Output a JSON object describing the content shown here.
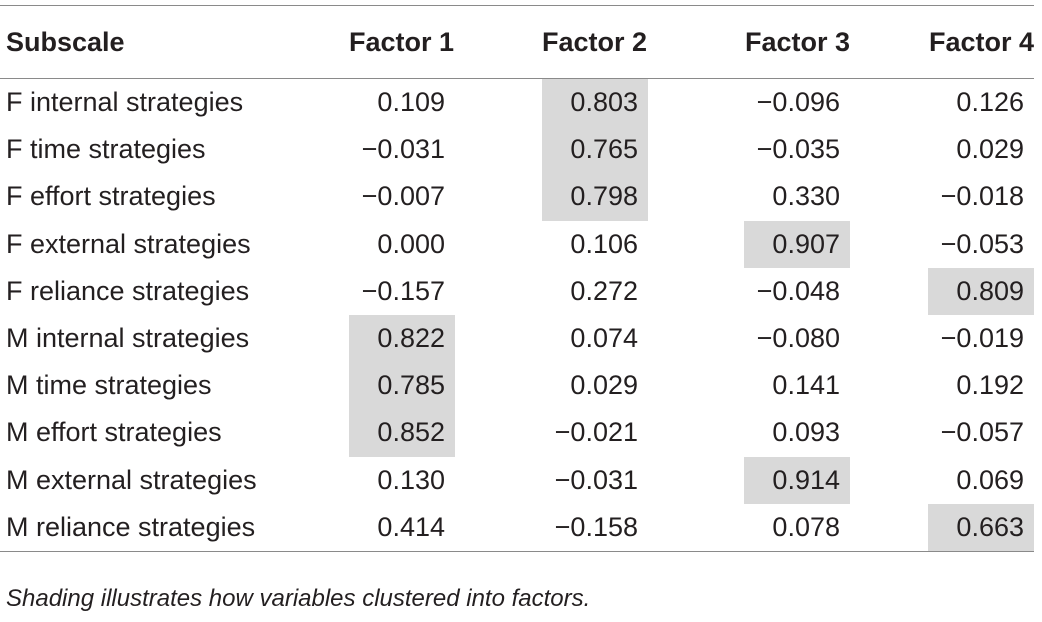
{
  "table": {
    "headers": [
      "Subscale",
      "Factor 1",
      "Factor 2",
      "Factor 3",
      "Factor 4"
    ],
    "rows": [
      {
        "label": "F internal strategies",
        "values": [
          "0.109",
          "0.803",
          "−0.096",
          "0.126"
        ],
        "shaded": [
          false,
          true,
          false,
          false
        ]
      },
      {
        "label": "F time strategies",
        "values": [
          "−0.031",
          "0.765",
          "−0.035",
          "0.029"
        ],
        "shaded": [
          false,
          true,
          false,
          false
        ]
      },
      {
        "label": "F effort strategies",
        "values": [
          "−0.007",
          "0.798",
          "0.330",
          "−0.018"
        ],
        "shaded": [
          false,
          true,
          false,
          false
        ]
      },
      {
        "label": "F external strategies",
        "values": [
          "0.000",
          "0.106",
          "0.907",
          "−0.053"
        ],
        "shaded": [
          false,
          false,
          true,
          false
        ]
      },
      {
        "label": "F reliance strategies",
        "values": [
          "−0.157",
          "0.272",
          "−0.048",
          "0.809"
        ],
        "shaded": [
          false,
          false,
          false,
          true
        ]
      },
      {
        "label": "M internal strategies",
        "values": [
          "0.822",
          "0.074",
          "−0.080",
          "−0.019"
        ],
        "shaded": [
          true,
          false,
          false,
          false
        ]
      },
      {
        "label": "M time strategies",
        "values": [
          "0.785",
          "0.029",
          "0.141",
          "0.192"
        ],
        "shaded": [
          true,
          false,
          false,
          false
        ]
      },
      {
        "label": "M effort strategies",
        "values": [
          "0.852",
          "−0.021",
          "0.093",
          "−0.057"
        ],
        "shaded": [
          true,
          false,
          false,
          false
        ]
      },
      {
        "label": "M external strategies",
        "values": [
          "0.130",
          "−0.031",
          "0.914",
          "0.069"
        ],
        "shaded": [
          false,
          false,
          true,
          false
        ]
      },
      {
        "label": "M reliance strategies",
        "values": [
          "0.414",
          "−0.158",
          "0.078",
          "0.663"
        ],
        "shaded": [
          false,
          false,
          false,
          true
        ]
      }
    ]
  },
  "footnote": "Shading illustrates how variables clustered into factors.",
  "colors": {
    "shading": "#d9d9d9",
    "rule": "#8a8a8a",
    "text": "#231f20"
  }
}
